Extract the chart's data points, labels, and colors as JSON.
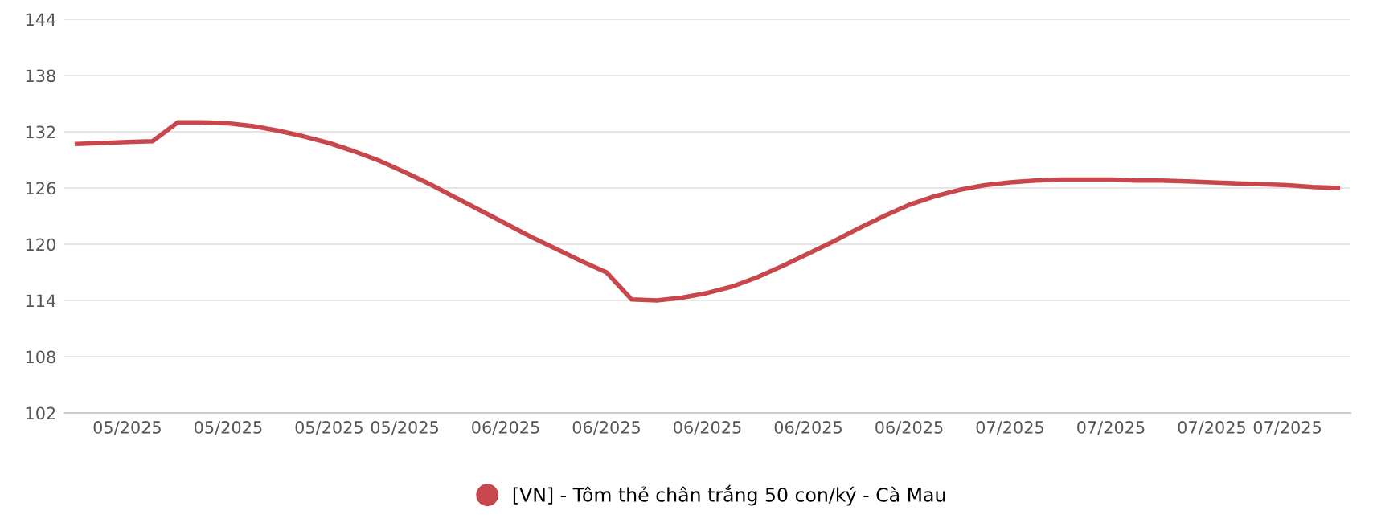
{
  "chart_data": {
    "type": "line",
    "categories": [
      null,
      null,
      "05/2025",
      null,
      null,
      null,
      "05/2025",
      null,
      null,
      null,
      "05/2025",
      null,
      null,
      "05/2025",
      null,
      null,
      null,
      "06/2025",
      null,
      null,
      null,
      "06/2025",
      null,
      null,
      null,
      "06/2025",
      null,
      null,
      null,
      "06/2025",
      null,
      null,
      null,
      "06/2025",
      null,
      null,
      null,
      "07/2025",
      null,
      null,
      null,
      "07/2025",
      null,
      null,
      null,
      "07/2025",
      null,
      null,
      "07/2025",
      null,
      null
    ],
    "series": [
      {
        "name": "[VN] - Tôm thẻ chân trắng 50 con/ký - Cà Mau",
        "color": "#c8474c",
        "values": [
          130.7,
          130.8,
          130.9,
          131.0,
          133.0,
          133.0,
          132.9,
          132.6,
          132.1,
          131.5,
          130.8,
          129.9,
          128.9,
          127.7,
          126.4,
          125.0,
          123.6,
          122.2,
          120.8,
          119.5,
          118.2,
          117.0,
          114.1,
          114.0,
          114.3,
          114.8,
          115.5,
          116.5,
          117.7,
          119.0,
          120.3,
          121.7,
          123.0,
          124.2,
          125.1,
          125.8,
          126.3,
          126.6,
          126.8,
          126.9,
          126.9,
          126.9,
          126.8,
          126.8,
          126.7,
          126.6,
          126.5,
          126.4,
          126.3,
          126.1,
          126.0
        ]
      }
    ],
    "ylim": [
      102,
      144
    ],
    "yticks": [
      102,
      108,
      114,
      120,
      126,
      132,
      138,
      144
    ],
    "grid": "y",
    "legend": "bottom",
    "marker": "none",
    "line_style": "solid"
  }
}
